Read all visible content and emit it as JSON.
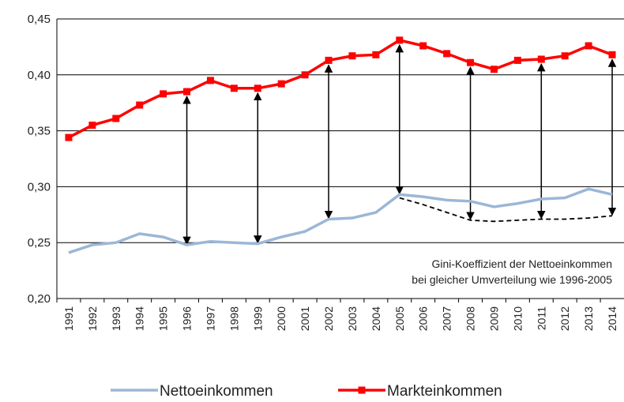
{
  "chart_data": {
    "type": "line",
    "categories": [
      "1991",
      "1992",
      "1993",
      "1994",
      "1995",
      "1996",
      "1997",
      "1998",
      "1999",
      "2000",
      "2001",
      "2002",
      "2003",
      "2004",
      "2005",
      "2006",
      "2007",
      "2008",
      "2009",
      "2010",
      "2011",
      "2012",
      "2013",
      "2014"
    ],
    "series": [
      {
        "name": "Nettoeinkommen",
        "color": "#9bb7d6",
        "values": [
          0.241,
          0.248,
          0.25,
          0.258,
          0.255,
          0.248,
          0.251,
          0.25,
          0.249,
          0.255,
          0.26,
          0.271,
          0.272,
          0.277,
          0.293,
          0.291,
          0.288,
          0.287,
          0.282,
          0.285,
          0.289,
          0.29,
          0.298,
          0.293
        ]
      },
      {
        "name": "Markteinkommen",
        "color": "#ff0000",
        "values": [
          0.344,
          0.355,
          0.361,
          0.373,
          0.383,
          0.385,
          0.395,
          0.388,
          0.388,
          0.392,
          0.4,
          0.413,
          0.417,
          0.418,
          0.431,
          0.426,
          0.419,
          0.411,
          0.405,
          0.413,
          0.414,
          0.417,
          0.426,
          0.418
        ]
      },
      {
        "color": "#000000",
        "dashed": true,
        "values": [
          null,
          null,
          null,
          null,
          null,
          null,
          null,
          null,
          null,
          null,
          null,
          null,
          null,
          null,
          0.29,
          0.284,
          0.277,
          0.27,
          0.269,
          0.27,
          0.271,
          0.271,
          0.272,
          0.274
        ]
      }
    ],
    "annotation": [
      "Gini-Koeffizient der Nettoeinkommen",
      "bei gleicher Umverteilung wie 1996-2005"
    ],
    "ylim": [
      0.2,
      0.45
    ],
    "yticks": [
      {
        "value": 0.2,
        "label": "0,20"
      },
      {
        "value": 0.25,
        "label": "0,25"
      },
      {
        "value": 0.3,
        "label": "0,30"
      },
      {
        "value": 0.35,
        "label": "0,35"
      },
      {
        "value": 0.4,
        "label": "0,40"
      },
      {
        "value": 0.45,
        "label": "0,45"
      }
    ],
    "grid": true,
    "legend": "bottom"
  }
}
